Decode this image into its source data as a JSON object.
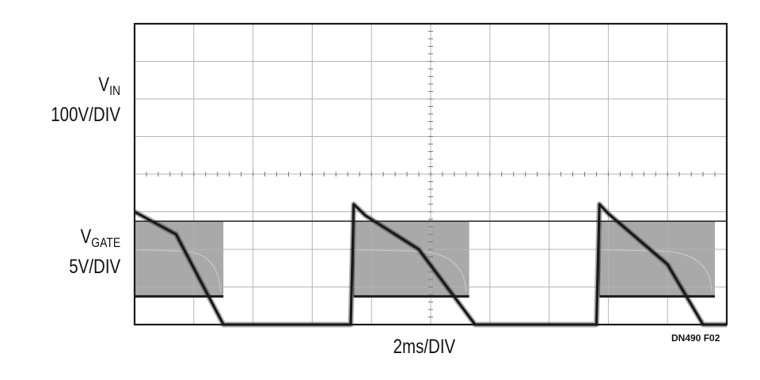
{
  "chart_data": {
    "type": "line",
    "title": "",
    "grid": true,
    "x": {
      "divisions": 10,
      "scale_label": "2ms/DIV",
      "unit": "ms",
      "range": [
        0,
        20
      ]
    },
    "y_divisions": 8,
    "channels": [
      {
        "name_main": "V",
        "name_sub": "IN",
        "scale_label": "100V/DIV",
        "unit": "V",
        "description_points_x_ms": [
          0,
          1.4,
          3.0,
          7.3,
          7.4,
          7.8,
          9.6,
          11.5,
          15.6,
          15.7,
          16.0,
          18.0,
          19.2,
          20.0
        ],
        "y_values_div": [
          3.0,
          2.4,
          0.0,
          0.0,
          3.2,
          2.9,
          2.0,
          0.0,
          0.0,
          3.2,
          2.95,
          1.6,
          0.0,
          0.0
        ],
        "reference_division": 4.0
      },
      {
        "name_main": "V",
        "name_sub": "GATE",
        "scale_label": "5V/DIV",
        "unit": "V",
        "on_intervals_ms": [
          [
            0,
            3.0
          ],
          [
            7.4,
            11.3
          ],
          [
            15.7,
            19.6
          ]
        ],
        "high_division": 2.75,
        "low_division": 0.75,
        "reference_division": 0.75
      }
    ]
  },
  "figure_id": "DN490 F02",
  "colors": {
    "trace": "#1a1a1a",
    "grid": "#b5b5b5",
    "frame": "#1a1a1a",
    "gate_fill": "#9a9a9a"
  }
}
